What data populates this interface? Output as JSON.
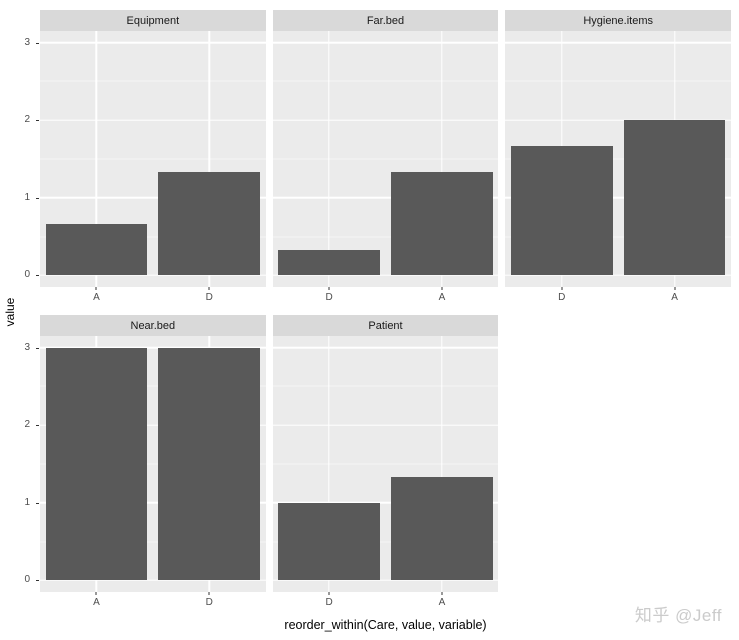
{
  "chart_data": {
    "type": "bar",
    "faceted": true,
    "title": "",
    "xlabel": "reorder_within(Care, value, variable)",
    "ylabel": "value",
    "ylim": [
      0,
      3
    ],
    "yticks": [
      0,
      1,
      2,
      3
    ],
    "yticks_minor": [
      0.5,
      1.5,
      2.5
    ],
    "grid": true,
    "legend_position": "none",
    "facet_columns": 3,
    "facets": [
      {
        "label": "Equipment",
        "row": 0,
        "categories": [
          "A",
          "D"
        ],
        "values": [
          0.667,
          1.333
        ]
      },
      {
        "label": "Far.bed",
        "row": 0,
        "categories": [
          "D",
          "A"
        ],
        "values": [
          0.333,
          1.333
        ]
      },
      {
        "label": "Hygiene.items",
        "row": 0,
        "categories": [
          "D",
          "A"
        ],
        "values": [
          1.667,
          2.0
        ]
      },
      {
        "label": "Near.bed",
        "row": 1,
        "categories": [
          "A",
          "D"
        ],
        "values": [
          3.0,
          3.0
        ]
      },
      {
        "label": "Patient",
        "row": 1,
        "categories": [
          "D",
          "A"
        ],
        "values": [
          1.0,
          1.333
        ]
      }
    ],
    "colors": {
      "bar": "#595959",
      "panel_bg": "#ebebeb",
      "strip_bg": "#d9d9d9",
      "gridline": "#ffffff",
      "axis_text": "#4d4d4d",
      "axis_title": "#000000",
      "tick": "#333333",
      "background": "#ffffff",
      "watermark": "#cbcbcb"
    }
  },
  "watermark": {
    "text": "知乎 @Jeff"
  }
}
